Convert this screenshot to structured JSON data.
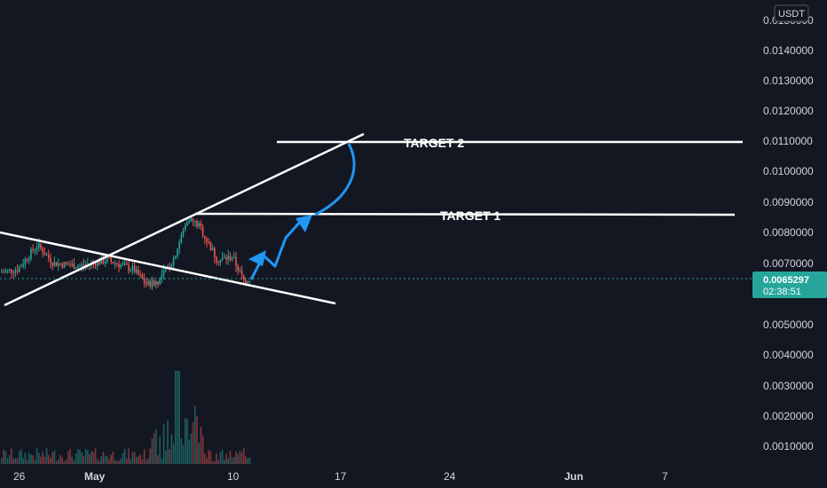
{
  "chart_data": {
    "type": "candlestick",
    "currency": "USDT",
    "price_ticks": [
      "0.0150000",
      "0.0140000",
      "0.0130000",
      "0.0120000",
      "0.0110000",
      "0.0100000",
      "0.0090000",
      "0.0080000",
      "0.0070000",
      "0.0050000",
      "0.0040000",
      "0.0030000",
      "0.0020000",
      "0.0010000"
    ],
    "price_tick_values": [
      0.015,
      0.014,
      0.013,
      0.012,
      0.011,
      0.01,
      0.009,
      0.008,
      0.007,
      0.005,
      0.004,
      0.003,
      0.002,
      0.001
    ],
    "time_ticks": [
      "26",
      "May",
      "10",
      "17",
      "24",
      "Jun",
      "7"
    ],
    "time_tick_days": [
      -5,
      0,
      9,
      16,
      23,
      31,
      37
    ],
    "current_price": "0.0065297",
    "countdown": "02:38:51",
    "annotations": [
      {
        "text": "TARGET 2",
        "level": 0.011
      },
      {
        "text": "TARGET 1",
        "level": 0.0086
      }
    ],
    "colors": {
      "up": "#26a69a",
      "down": "#ef5350",
      "accent": "#2196f3",
      "price_badge": "#26a69a",
      "background": "#131722"
    }
  }
}
